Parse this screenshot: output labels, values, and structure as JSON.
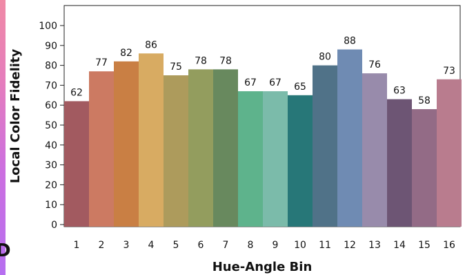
{
  "chart_data": {
    "type": "bar",
    "title": "",
    "xlabel": "Hue-Angle Bin",
    "ylabel": "Local Color Fidelity",
    "categories": [
      "1",
      "2",
      "3",
      "4",
      "5",
      "6",
      "7",
      "8",
      "9",
      "10",
      "11",
      "12",
      "13",
      "14",
      "15",
      "16"
    ],
    "values": [
      62,
      77,
      82,
      86,
      75,
      78,
      78,
      67,
      67,
      65,
      80,
      88,
      76,
      63,
      58,
      73
    ],
    "data_labels": [
      "62",
      "77",
      "82",
      "86",
      "75",
      "78",
      "78",
      "67",
      "67",
      "65",
      "80",
      "88",
      "76",
      "63",
      "58",
      "73"
    ],
    "ylim": [
      0,
      100
    ],
    "yticks": [
      "0",
      "10",
      "20",
      "30",
      "40",
      "50",
      "60",
      "70",
      "80",
      "90",
      "100"
    ],
    "grid": false,
    "legend": "none",
    "bar_colors": [
      "#a25a60",
      "#cc7a62",
      "#c97f44",
      "#d8ab62",
      "#ad9b5c",
      "#939d5e",
      "#68895e",
      "#5eb38c",
      "#7bbbaa",
      "#277778",
      "#507288",
      "#6f8bb3",
      "#988bab",
      "#6d5574",
      "#936b86",
      "#b97c8e"
    ]
  }
}
